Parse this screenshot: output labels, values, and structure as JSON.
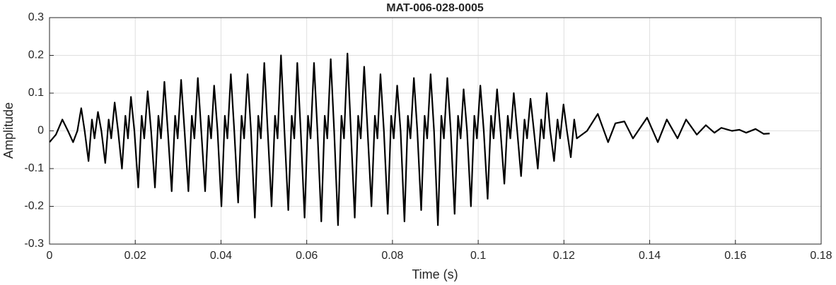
{
  "chart_data": {
    "type": "line",
    "title": "MAT-006-028-0005",
    "x_label": "Time (s)",
    "y_label": "Amplitude",
    "color": "#000000",
    "grid": true,
    "xlim": [
      0,
      0.18
    ],
    "xticks": [
      0,
      0.02,
      0.04,
      0.06,
      0.08,
      0.1,
      0.12,
      0.14,
      0.16,
      0.18
    ],
    "ylim": [
      -0.3,
      0.3
    ],
    "yticks": [
      -0.3,
      -0.2,
      -0.1,
      0,
      0.1,
      0.2,
      0.3
    ],
    "x": [
      0,
      0.0015,
      0.003,
      0.0043,
      0.0055,
      0.0065,
      0.0074,
      0.0082,
      0.0091,
      0.0099,
      0.0105,
      0.0113,
      0.0121,
      0.013,
      0.0138,
      0.0144,
      0.0152,
      0.016,
      0.0169,
      0.0177,
      0.0183,
      0.019,
      0.0198,
      0.0207,
      0.0215,
      0.0221,
      0.0229,
      0.0237,
      0.0246,
      0.0254,
      0.026,
      0.0268,
      0.0276,
      0.0285,
      0.0293,
      0.0299,
      0.0307,
      0.0315,
      0.0324,
      0.0332,
      0.0338,
      0.0346,
      0.0354,
      0.0363,
      0.0371,
      0.0377,
      0.0384,
      0.0392,
      0.0401,
      0.0409,
      0.0415,
      0.0423,
      0.0431,
      0.044,
      0.0448,
      0.0454,
      0.0462,
      0.047,
      0.0479,
      0.0487,
      0.0493,
      0.0501,
      0.0509,
      0.0518,
      0.0526,
      0.0532,
      0.054,
      0.0548,
      0.0557,
      0.0565,
      0.0571,
      0.0578,
      0.0586,
      0.0595,
      0.0603,
      0.0609,
      0.0617,
      0.0625,
      0.0634,
      0.0642,
      0.0648,
      0.0656,
      0.0664,
      0.0673,
      0.0681,
      0.0687,
      0.0695,
      0.0703,
      0.0712,
      0.072,
      0.0726,
      0.0734,
      0.0742,
      0.0751,
      0.0759,
      0.0765,
      0.0772,
      0.078,
      0.0789,
      0.0797,
      0.0803,
      0.0811,
      0.0819,
      0.0828,
      0.0836,
      0.0842,
      0.085,
      0.0858,
      0.0867,
      0.0875,
      0.0881,
      0.0889,
      0.0897,
      0.0906,
      0.0914,
      0.092,
      0.0928,
      0.0936,
      0.0945,
      0.0953,
      0.0959,
      0.0966,
      0.0974,
      0.0983,
      0.0991,
      0.0997,
      0.1005,
      0.1013,
      0.1022,
      0.103,
      0.1036,
      0.1044,
      0.1052,
      0.1061,
      0.1069,
      0.1075,
      0.1083,
      0.1091,
      0.11,
      0.1108,
      0.1114,
      0.1122,
      0.113,
      0.1139,
      0.1147,
      0.1153,
      0.116,
      0.1168,
      0.1177,
      0.1185,
      0.1191,
      0.1199,
      0.1207,
      0.1216,
      0.1224,
      0.123,
      0.1254,
      0.1279,
      0.1303,
      0.132,
      0.1341,
      0.1361,
      0.1394,
      0.1419,
      0.144,
      0.1465,
      0.1485,
      0.151,
      0.1531,
      0.1551,
      0.1567,
      0.1592,
      0.1609,
      0.1625,
      0.1647,
      0.1666,
      0.168
    ],
    "values": [
      -0.03,
      -0.01,
      0.03,
      0.0,
      -0.03,
      0.0,
      0.06,
      0.0,
      -0.08,
      0.03,
      -0.02,
      0.05,
      0.0,
      -0.085,
      0.03,
      -0.02,
      0.075,
      0.0,
      -0.1,
      0.04,
      -0.02,
      0.09,
      0.0,
      -0.15,
      0.04,
      -0.02,
      0.105,
      0.0,
      -0.15,
      0.04,
      -0.02,
      0.13,
      0.0,
      -0.16,
      0.04,
      -0.02,
      0.135,
      0.0,
      -0.16,
      0.04,
      -0.02,
      0.14,
      0.0,
      -0.16,
      0.04,
      -0.02,
      0.12,
      0.0,
      -0.2,
      0.04,
      -0.02,
      0.15,
      0.0,
      -0.19,
      0.04,
      -0.02,
      0.15,
      0.0,
      -0.23,
      0.04,
      -0.02,
      0.18,
      0.0,
      -0.2,
      0.04,
      -0.02,
      0.2,
      0.0,
      -0.21,
      0.04,
      -0.02,
      0.18,
      0.0,
      -0.23,
      0.04,
      -0.02,
      0.18,
      0.0,
      -0.24,
      0.04,
      -0.02,
      0.19,
      0.0,
      -0.25,
      0.04,
      -0.02,
      0.205,
      0.0,
      -0.23,
      0.04,
      -0.02,
      0.17,
      0.0,
      -0.2,
      0.04,
      -0.02,
      0.15,
      0.0,
      -0.22,
      0.04,
      -0.02,
      0.12,
      0.0,
      -0.24,
      0.04,
      -0.02,
      0.14,
      0.0,
      -0.21,
      0.04,
      -0.02,
      0.15,
      0.0,
      -0.25,
      0.04,
      -0.02,
      0.14,
      0.0,
      -0.22,
      0.04,
      -0.02,
      0.11,
      0.0,
      -0.2,
      0.04,
      -0.02,
      0.12,
      0.0,
      -0.18,
      0.04,
      -0.02,
      0.11,
      0.0,
      -0.14,
      0.04,
      -0.02,
      0.1,
      0.0,
      -0.12,
      0.03,
      -0.02,
      0.085,
      0.0,
      -0.1,
      0.03,
      -0.02,
      0.1,
      0.0,
      -0.08,
      0.03,
      -0.02,
      0.07,
      0.0,
      -0.07,
      0.03,
      -0.02,
      0.0,
      0.045,
      -0.03,
      0.02,
      0.025,
      -0.02,
      0.035,
      -0.03,
      0.03,
      -0.02,
      0.03,
      -0.01,
      0.015,
      -0.005,
      0.008,
      0.0,
      0.003,
      -0.005,
      0.005,
      -0.008,
      -0.007
    ]
  }
}
